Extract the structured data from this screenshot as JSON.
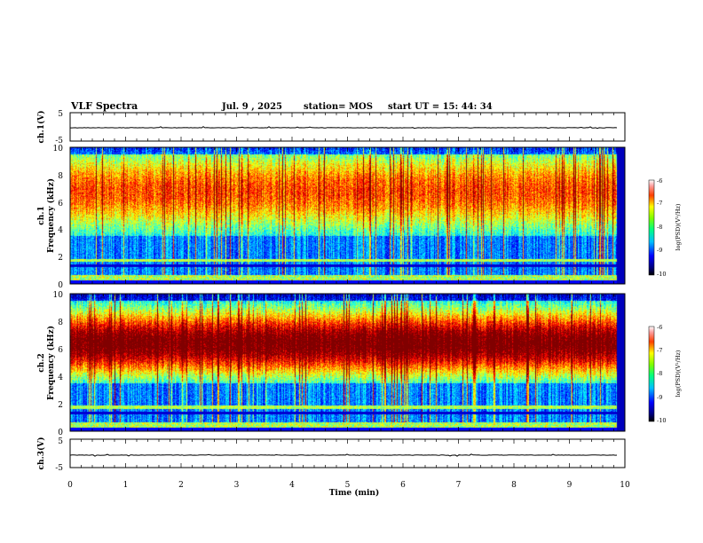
{
  "header": {
    "title": "VLF Spectra",
    "date": "Jul. 9 , 2025",
    "station": "station= MOS",
    "start": "start UT = 15: 44: 34"
  },
  "chart_data": [
    {
      "id": "ch1-waveform",
      "type": "line",
      "ylabel": "ch.1(V)",
      "ylim": [
        -5,
        5
      ],
      "yticks": [
        "5",
        "-5"
      ],
      "level": -0.3
    },
    {
      "id": "ch1-spectrogram",
      "type": "heatmap",
      "ylabel_line1": "ch.1",
      "ylabel_line2": "Frequency (kHz)",
      "xlim": [
        0,
        10
      ],
      "ylim": [
        0,
        10
      ],
      "yticks": [
        "0",
        "2",
        "4",
        "6",
        "8",
        "10"
      ],
      "data_extent_min": 9.85,
      "colorbar_label": "log(PSD)(V²/Hz)",
      "colorbar_ticks": [
        "-6",
        "-7",
        "-8",
        "-9",
        "-10"
      ],
      "band_center_khz": 6.8,
      "band_width_khz": 3.2,
      "peak_level": 0.62
    },
    {
      "id": "ch2-spectrogram",
      "type": "heatmap",
      "ylabel_line1": "ch.2",
      "ylabel_line2": "Frequency (kHz)",
      "xlim": [
        0,
        10
      ],
      "ylim": [
        0,
        10
      ],
      "yticks": [
        "0",
        "2",
        "4",
        "6",
        "8",
        "10"
      ],
      "data_extent_min": 9.85,
      "colorbar_label": "log(PSD)(V²/Hz)",
      "colorbar_ticks": [
        "-6",
        "-7",
        "-8",
        "-9",
        "-10"
      ],
      "band_center_khz": 6.4,
      "band_width_khz": 2.6,
      "peak_level": 0.88
    },
    {
      "id": "ch3-waveform",
      "type": "line",
      "ylabel": "ch.3(V)",
      "ylim": [
        -5,
        5
      ],
      "yticks": [
        "5",
        "-5"
      ],
      "level": -0.6
    }
  ],
  "x_axis": {
    "label": "Time (min)",
    "ticks": [
      "0",
      "1",
      "2",
      "3",
      "4",
      "5",
      "6",
      "7",
      "8",
      "9",
      "10"
    ]
  },
  "colors": {
    "jet": [
      "#00007f",
      "#0000ff",
      "#007fff",
      "#00ffff",
      "#7fff7f",
      "#ffff00",
      "#ff7f00",
      "#ff0000",
      "#7f0000"
    ],
    "background": "#00008a"
  }
}
